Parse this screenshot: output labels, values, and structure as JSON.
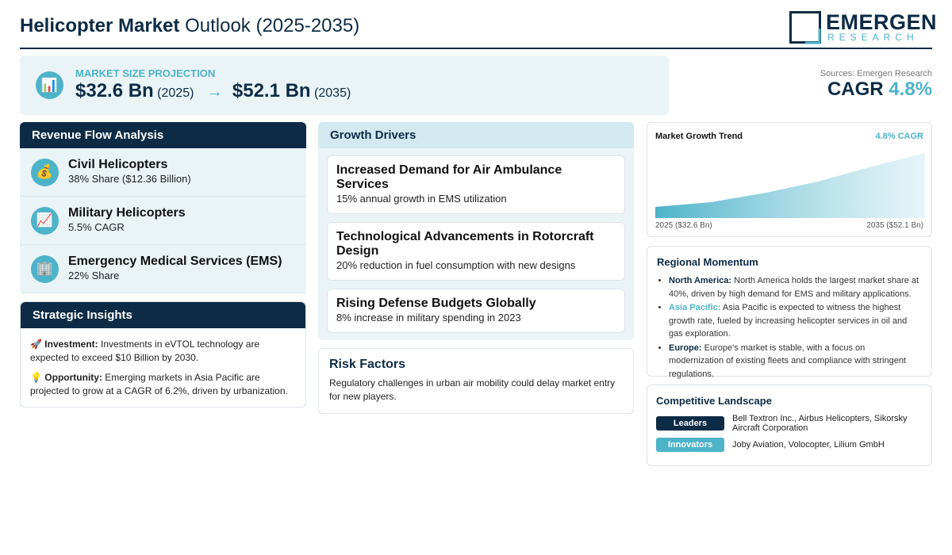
{
  "header": {
    "title_bold": "Helicopter Market",
    "title_rest": "Outlook (2025-2035)",
    "logo_top": "EMERGEN",
    "logo_bottom": "RESEARCH"
  },
  "projection": {
    "icon": "📊",
    "label": "MARKET SIZE PROJECTION",
    "start_value": "$32.6 Bn",
    "start_year": "(2025)",
    "arrow": "→",
    "end_value": "$52.1 Bn",
    "end_year": "(2035)"
  },
  "summary": {
    "sources": "Sources: Emergen Research",
    "cagr_label": "CAGR",
    "cagr_value": "4.8%"
  },
  "revenue": {
    "title": "Revenue Flow Analysis",
    "items": [
      {
        "icon": "💰",
        "name": "Civil Helicopters",
        "detail": "38% Share ($12.36 Billion)"
      },
      {
        "icon": "📈",
        "name": "Military Helicopters",
        "detail": "5.5% CAGR"
      },
      {
        "icon": "🏢",
        "name": "Emergency Medical Services (EMS)",
        "detail": "22% Share"
      }
    ]
  },
  "insights": {
    "title": "Strategic Insights",
    "items": [
      {
        "icon": "🚀",
        "label": "Investment:",
        "text": "Investments in eVTOL technology are expected to exceed $10 Billion by 2030."
      },
      {
        "icon": "💡",
        "label": "Opportunity:",
        "text": "Emerging markets in Asia Pacific are projected to grow at a CAGR of 6.2%, driven by urbanization."
      }
    ]
  },
  "drivers": {
    "title": "Growth Drivers",
    "items": [
      {
        "name": "Increased Demand for Air Ambulance Services",
        "detail": "15% annual growth in EMS utilization"
      },
      {
        "name": "Technological Advancements in Rotorcraft Design",
        "detail": "20% reduction in fuel consumption with new designs"
      },
      {
        "name": "Rising Defense Budgets Globally",
        "detail": "8% increase in military spending in 2023"
      }
    ]
  },
  "risk": {
    "title": "Risk Factors",
    "text": "Regulatory challenges in urban air mobility could delay market entry for new players."
  },
  "trend": {
    "title": "Market Growth Trend",
    "badge": "4.8% CAGR",
    "start_label": "2025 ($32.6 Bn)",
    "end_label": "2035 ($52.1 Bn)"
  },
  "regional": {
    "title": "Regional Momentum",
    "items": [
      {
        "region": "North America:",
        "text": "North America holds the largest market share at 40%, driven by high demand for EMS and military applications."
      },
      {
        "region": "Asia Pacific:",
        "text": "Asia Pacific is expected to witness the highest growth rate, fueled by increasing helicopter services in oil and gas exploration."
      },
      {
        "region": "Europe:",
        "text": "Europe's market is stable, with a focus on modernization of existing fleets and compliance with stringent regulations."
      }
    ]
  },
  "competitive": {
    "title": "Competitive Landscape",
    "rows": [
      {
        "tag": "Leaders",
        "text": "Bell Textron Inc., Airbus Helicopters, Sikorsky Aircraft Corporation"
      },
      {
        "tag": "Innovators",
        "text": "Joby Aviation, Volocopter, Lilium GmbH"
      }
    ]
  }
}
